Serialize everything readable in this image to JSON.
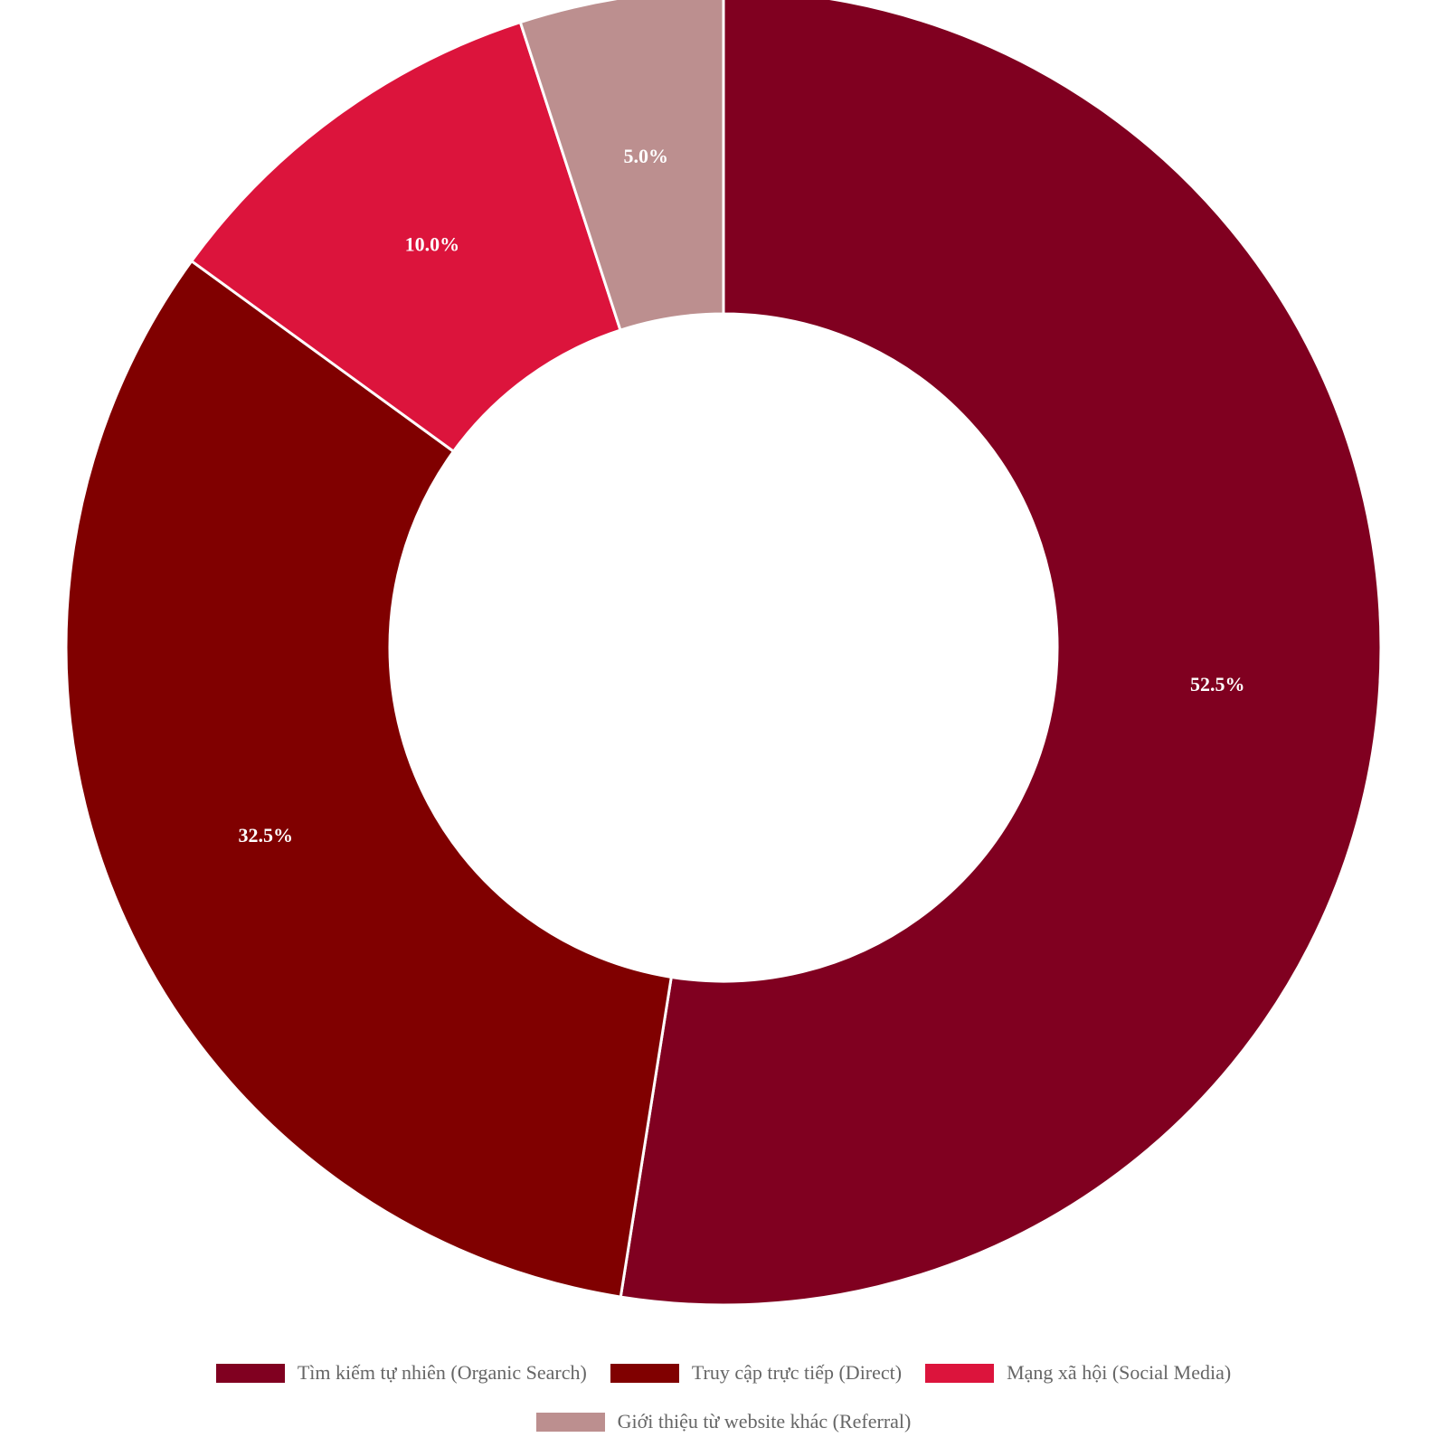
{
  "chart_data": {
    "type": "pie",
    "variant": "donut",
    "categories": [
      "Tìm kiếm tự nhiên (Organic Search)",
      "Truy cập trực tiếp (Direct)",
      "Mạng xã hội (Social Media)",
      "Giới thiệu từ website khác (Referral)"
    ],
    "values": [
      52.5,
      32.5,
      10.0,
      5.0
    ],
    "data_labels": [
      "52.5%",
      "32.5%",
      "10.0%",
      "5.0%"
    ],
    "colors": [
      "#800020",
      "#800000",
      "#DC143C",
      "#BC8F8F"
    ],
    "legend_position": "bottom",
    "title": ""
  }
}
